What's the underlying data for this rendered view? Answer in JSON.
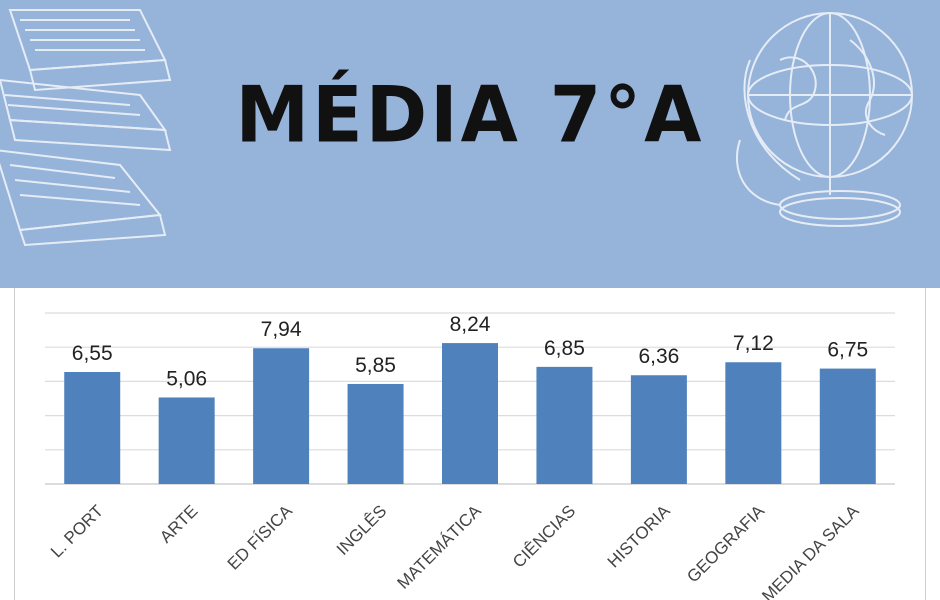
{
  "banner": {
    "title": "MÉDIA 7°A",
    "background": "#96b3d9"
  },
  "chart_data": {
    "type": "bar",
    "categories": [
      "L. PORT",
      "ARTE",
      "ED FÍSICA",
      "INGLÊS",
      "MATEMÁTICA",
      "CIÊNCIAS",
      "HISTORIA",
      "GEOGRAFIA",
      "MEDIA DA SALA"
    ],
    "values": [
      6.55,
      5.06,
      7.94,
      5.85,
      8.24,
      6.85,
      6.36,
      7.12,
      6.75
    ],
    "value_labels": [
      "6,55",
      "5,06",
      "7,94",
      "5,85",
      "8,24",
      "6,85",
      "6,36",
      "7,12",
      "6,75"
    ],
    "bar_color": "#4f81bd",
    "grid": true,
    "title": "",
    "xlabel": "",
    "ylabel": ""
  }
}
